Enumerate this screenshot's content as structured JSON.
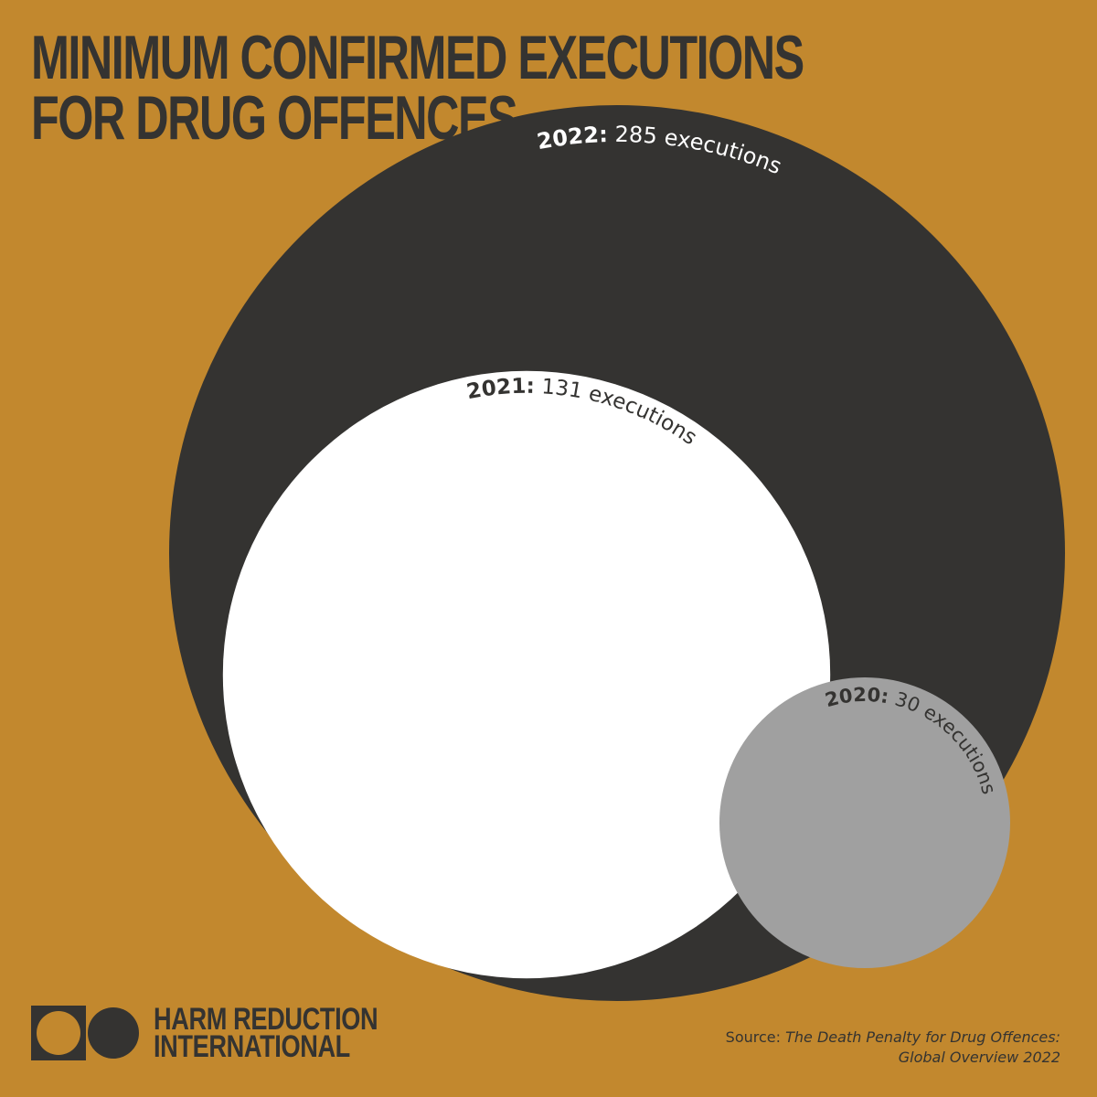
{
  "title": {
    "line1": "MINIMUM CONFIRMED EXECUTIONS",
    "line2": "FOR DRUG OFFENCES"
  },
  "chart_data": {
    "type": "bubble",
    "title": "MINIMUM CONFIRMED EXECUTIONS FOR DRUG OFFENCES",
    "series": [
      {
        "year": "2022:",
        "value": 285,
        "label": " 285 executions",
        "color": "#343331",
        "text_color": "#FFFFFF"
      },
      {
        "year": "2021:",
        "value": 131,
        "label": " 131 executions",
        "color": "#FFFFFF",
        "text_color": "#343331"
      },
      {
        "year": "2020:",
        "value": 30,
        "label": " 30 executions",
        "color": "#A0A0A0",
        "text_color": "#343331"
      }
    ]
  },
  "colors": {
    "background": "#C2882E",
    "dark": "#343331",
    "white": "#FFFFFF",
    "grey": "#A0A0A0"
  },
  "logo": {
    "icon": "logo-circles-icon",
    "line1": "HARM REDUCTION",
    "line2": "INTERNATIONAL"
  },
  "source": {
    "prefix": "Source: ",
    "title_line1": "The Death Penalty for Drug Offences:",
    "title_line2": "Global Overview 2022"
  }
}
